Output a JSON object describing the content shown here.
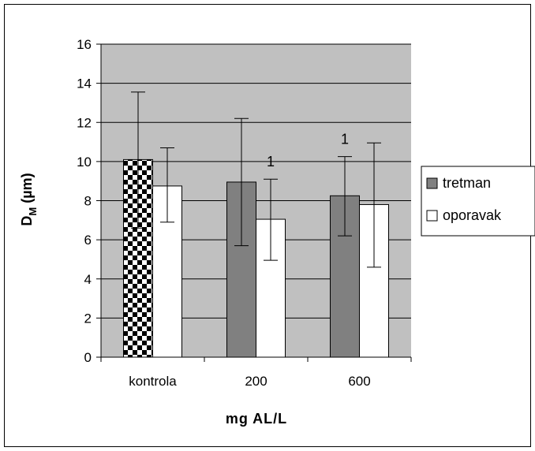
{
  "chart_data": {
    "type": "bar",
    "categories": [
      "kontrola",
      "200",
      "600"
    ],
    "series": [
      {
        "name": "tretman",
        "values": [
          10.1,
          8.95,
          8.25
        ],
        "err_low": [
          6.6,
          5.7,
          6.2
        ],
        "err_high": [
          13.55,
          12.2,
          10.25
        ],
        "color": "#808080"
      },
      {
        "name": "oporavak",
        "values": [
          8.75,
          7.05,
          7.8
        ],
        "err_low": [
          6.9,
          4.95,
          4.6
        ],
        "err_high": [
          10.7,
          9.1,
          10.95
        ],
        "color": "#ffffff"
      }
    ],
    "control_pattern": "checkerboard",
    "xlabel": "mg AL/L",
    "ylabel_main": "D",
    "ylabel_sub": "M",
    "ylabel_unit": " (µm)",
    "ylim": [
      0,
      16
    ],
    "yticks": [
      "0",
      "2",
      "4",
      "6",
      "8",
      "10",
      "12",
      "14",
      "16"
    ],
    "grid": true,
    "plot_bg": "#c0c0c0",
    "annotations": [
      {
        "category_index": 1,
        "series_index": 1,
        "text": "1"
      },
      {
        "category_index": 2,
        "series_index": 0,
        "text": "1"
      }
    ],
    "legend_position": "right"
  }
}
